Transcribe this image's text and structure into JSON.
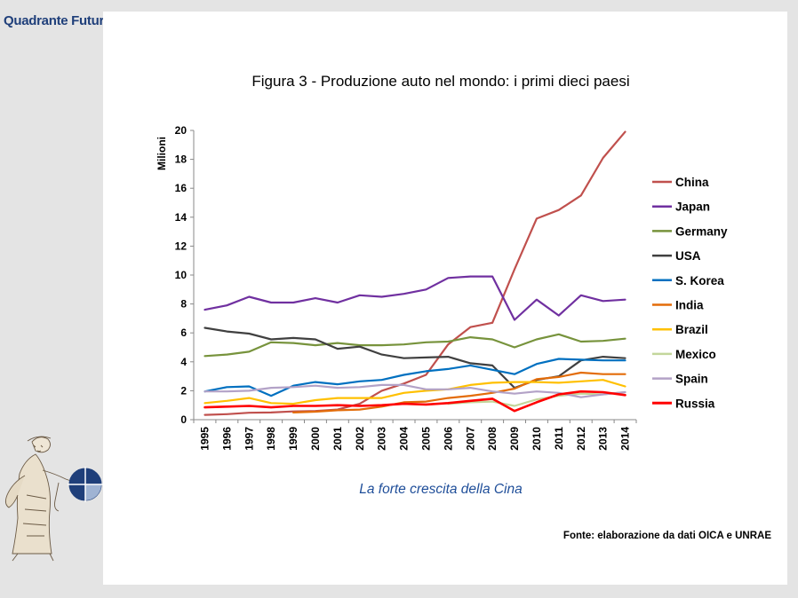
{
  "brand": {
    "name": "Quadrante Futuro"
  },
  "caption": "La forte crescita della Cina",
  "source": "Fonte: elaborazione da dati OICA e UNRAE",
  "colors": {
    "background": "#e4e4e4",
    "slide": "#ffffff",
    "brand": "#1f3f7a",
    "caption": "#1f4e99"
  },
  "chart_data": {
    "type": "line",
    "title": "Figura 3 - Produzione auto nel mondo: i primi dieci paesi",
    "xlabel": "",
    "ylabel": "Milioni",
    "ylim": [
      0,
      20
    ],
    "yticks": [
      0,
      2,
      4,
      6,
      8,
      10,
      12,
      14,
      16,
      18,
      20
    ],
    "grid": false,
    "legend_position": "right",
    "categories": [
      "1995",
      "1996",
      "1997",
      "1998",
      "1999",
      "2000",
      "2001",
      "2002",
      "2003",
      "2004",
      "2005",
      "2006",
      "2007",
      "2008",
      "2009",
      "2010",
      "2011",
      "2012",
      "2013",
      "2014"
    ],
    "series": [
      {
        "name": "China",
        "color": "#c0504d",
        "values": [
          0.33,
          0.38,
          0.48,
          0.5,
          0.57,
          0.6,
          0.7,
          1.1,
          2.0,
          2.5,
          3.1,
          5.2,
          6.4,
          6.7,
          10.4,
          13.9,
          14.5,
          15.5,
          18.1,
          19.9
        ]
      },
      {
        "name": "Japan",
        "color": "#7030a0",
        "values": [
          7.6,
          7.9,
          8.5,
          8.1,
          8.1,
          8.4,
          8.1,
          8.6,
          8.5,
          8.7,
          9.0,
          9.8,
          9.9,
          9.9,
          6.9,
          8.3,
          7.2,
          8.6,
          8.2,
          8.3
        ]
      },
      {
        "name": "Germany",
        "color": "#77933c",
        "values": [
          4.4,
          4.5,
          4.7,
          5.35,
          5.3,
          5.15,
          5.3,
          5.15,
          5.15,
          5.2,
          5.35,
          5.4,
          5.7,
          5.55,
          5.0,
          5.55,
          5.9,
          5.4,
          5.45,
          5.6
        ]
      },
      {
        "name": "USA",
        "color": "#404040",
        "values": [
          6.35,
          6.1,
          5.95,
          5.55,
          5.65,
          5.55,
          4.9,
          5.05,
          4.5,
          4.25,
          4.3,
          4.35,
          3.9,
          3.75,
          2.2,
          2.75,
          3.0,
          4.1,
          4.35,
          4.25
        ]
      },
      {
        "name": "S. Korea",
        "color": "#0070c0",
        "values": [
          1.95,
          2.25,
          2.3,
          1.65,
          2.35,
          2.6,
          2.45,
          2.65,
          2.75,
          3.1,
          3.35,
          3.5,
          3.75,
          3.45,
          3.15,
          3.85,
          4.2,
          4.15,
          4.1,
          4.1
        ]
      },
      {
        "name": "India",
        "color": "#e36c09",
        "values": [
          0.0,
          0.0,
          0.0,
          0.0,
          0.5,
          0.55,
          0.65,
          0.7,
          0.9,
          1.2,
          1.25,
          1.5,
          1.65,
          1.85,
          2.15,
          2.8,
          2.95,
          3.25,
          3.15,
          3.15
        ]
      },
      {
        "name": "Brazil",
        "color": "#ffc000",
        "values": [
          1.15,
          1.3,
          1.5,
          1.15,
          1.1,
          1.35,
          1.5,
          1.5,
          1.5,
          1.85,
          2.0,
          2.1,
          2.4,
          2.55,
          2.6,
          2.6,
          2.55,
          2.65,
          2.75,
          2.3
        ]
      },
      {
        "name": "Mexico",
        "color": "#c3d69b",
        "values": [
          0.0,
          0.0,
          0.0,
          0.0,
          0.0,
          0.0,
          0.0,
          0.0,
          0.0,
          0.0,
          0.0,
          1.1,
          1.2,
          1.25,
          0.95,
          1.4,
          1.65,
          1.8,
          1.75,
          1.9
        ]
      },
      {
        "name": "Spain",
        "color": "#b3a2c7",
        "values": [
          1.95,
          1.95,
          2.0,
          2.2,
          2.25,
          2.35,
          2.2,
          2.25,
          2.4,
          2.4,
          2.1,
          2.1,
          2.2,
          1.95,
          1.8,
          1.95,
          1.85,
          1.55,
          1.75,
          1.9
        ]
      },
      {
        "name": "Russia",
        "color": "#ff0000",
        "values": [
          0.85,
          0.9,
          0.95,
          0.85,
          0.95,
          0.95,
          1.0,
          0.95,
          1.0,
          1.1,
          1.05,
          1.15,
          1.3,
          1.45,
          0.6,
          1.2,
          1.75,
          1.95,
          1.9,
          1.7
        ]
      }
    ]
  }
}
